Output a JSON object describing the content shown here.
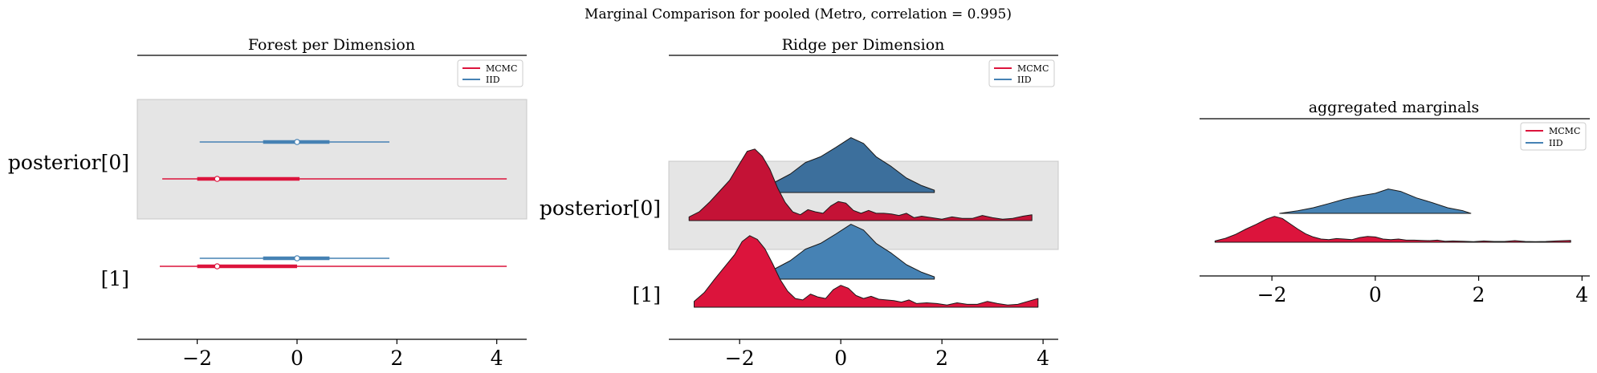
{
  "figure": {
    "suptitle": "Marginal Comparison for pooled (Metro, correlation = 0.995)"
  },
  "colors": {
    "mcmc": "#dc143c",
    "mcmc_dark": "#c41236",
    "iid": "#4682b4",
    "iid_dark": "#3c6f9c",
    "shade": "#e5e5e5",
    "shade_border": "#c8c8c8"
  },
  "legend": {
    "mcmc": "MCMC",
    "iid": "IID"
  },
  "chart_data": [
    {
      "type": "forest",
      "title": "Forest per Dimension",
      "xlim": [
        -3.2,
        4.6
      ],
      "xticks": [
        -2,
        0,
        2,
        4
      ],
      "xtick_labels": [
        "−2",
        "0",
        "2",
        "4"
      ],
      "rows": [
        {
          "label": "posterior[0]",
          "shaded": true,
          "series": [
            {
              "name": "IID",
              "min": -1.95,
              "q25": -0.68,
              "median": 0.0,
              "q75": 0.65,
              "max": 1.85
            },
            {
              "name": "MCMC",
              "min": -2.7,
              "q25": -2.0,
              "median": -1.6,
              "q75": 0.05,
              "max": 4.2
            }
          ]
        },
        {
          "label": "[1]",
          "shaded": false,
          "series": [
            {
              "name": "IID",
              "min": -1.95,
              "q25": -0.68,
              "median": 0.0,
              "q75": 0.65,
              "max": 1.85
            },
            {
              "name": "MCMC",
              "min": -2.75,
              "q25": -2.0,
              "median": -1.6,
              "q75": 0.0,
              "max": 4.2
            }
          ]
        }
      ]
    },
    {
      "type": "ridge",
      "title": "Ridge per Dimension",
      "xlim": [
        -3.4,
        4.3
      ],
      "xticks": [
        -2,
        0,
        2,
        4
      ],
      "xtick_labels": [
        "−2",
        "0",
        "2",
        "4"
      ],
      "rows": [
        {
          "label": "posterior[0]",
          "shaded": true,
          "iid": {
            "x": [
              -1.95,
              -1.6,
              -1.3,
              -1.0,
              -0.7,
              -0.4,
              -0.1,
              0.2,
              0.45,
              0.7,
              1.0,
              1.3,
              1.6,
              1.85
            ],
            "y": [
              0.0,
              0.05,
              0.18,
              0.32,
              0.52,
              0.62,
              0.78,
              0.95,
              0.85,
              0.62,
              0.45,
              0.25,
              0.12,
              0.04
            ]
          },
          "mcmc": {
            "x": [
              -3.0,
              -2.8,
              -2.6,
              -2.4,
              -2.2,
              -2.0,
              -1.85,
              -1.7,
              -1.55,
              -1.4,
              -1.25,
              -1.1,
              -0.95,
              -0.8,
              -0.65,
              -0.5,
              -0.35,
              -0.2,
              -0.05,
              0.1,
              0.25,
              0.4,
              0.55,
              0.7,
              0.85,
              1.0,
              1.15,
              1.3,
              1.45,
              1.6,
              1.8,
              2.0,
              2.2,
              2.4,
              2.6,
              2.8,
              3.0,
              3.2,
              3.4,
              3.6,
              3.78
            ],
            "y": [
              0.05,
              0.12,
              0.25,
              0.4,
              0.55,
              0.78,
              0.95,
              0.98,
              0.88,
              0.7,
              0.45,
              0.25,
              0.12,
              0.08,
              0.15,
              0.12,
              0.1,
              0.2,
              0.26,
              0.24,
              0.14,
              0.1,
              0.14,
              0.1,
              0.1,
              0.09,
              0.07,
              0.1,
              0.04,
              0.06,
              0.04,
              0.02,
              0.05,
              0.03,
              0.03,
              0.07,
              0.04,
              0.02,
              0.03,
              0.06,
              0.08
            ]
          }
        },
        {
          "label": "[1]",
          "shaded": false,
          "iid": {
            "x": [
              -1.95,
              -1.6,
              -1.3,
              -1.0,
              -0.7,
              -0.4,
              -0.1,
              0.2,
              0.45,
              0.7,
              1.0,
              1.3,
              1.6,
              1.85
            ],
            "y": [
              0.0,
              0.05,
              0.18,
              0.32,
              0.52,
              0.62,
              0.78,
              0.95,
              0.85,
              0.62,
              0.45,
              0.25,
              0.12,
              0.04
            ]
          },
          "mcmc": {
            "x": [
              -2.9,
              -2.7,
              -2.5,
              -2.3,
              -2.1,
              -1.95,
              -1.8,
              -1.65,
              -1.5,
              -1.35,
              -1.2,
              -1.05,
              -0.9,
              -0.75,
              -0.6,
              -0.45,
              -0.3,
              -0.15,
              0.0,
              0.15,
              0.3,
              0.45,
              0.6,
              0.75,
              0.9,
              1.05,
              1.2,
              1.35,
              1.5,
              1.7,
              1.9,
              2.1,
              2.3,
              2.5,
              2.7,
              2.9,
              3.1,
              3.3,
              3.5,
              3.7,
              3.9
            ],
            "y": [
              0.08,
              0.2,
              0.38,
              0.55,
              0.72,
              0.9,
              0.98,
              0.93,
              0.8,
              0.6,
              0.38,
              0.22,
              0.12,
              0.1,
              0.18,
              0.14,
              0.12,
              0.24,
              0.3,
              0.26,
              0.16,
              0.12,
              0.15,
              0.11,
              0.1,
              0.09,
              0.07,
              0.1,
              0.05,
              0.06,
              0.05,
              0.03,
              0.06,
              0.04,
              0.04,
              0.08,
              0.05,
              0.03,
              0.04,
              0.08,
              0.12
            ]
          }
        }
      ]
    },
    {
      "type": "ridge",
      "title": "aggregated marginals",
      "xlim": [
        -3.4,
        4.15
      ],
      "xticks": [
        -2,
        0,
        2,
        4
      ],
      "xtick_labels": [
        "−2",
        "0",
        "2",
        "4"
      ],
      "rows": [
        {
          "label": "",
          "shaded": false,
          "iid": {
            "x": [
              -1.85,
              -1.5,
              -1.2,
              -0.9,
              -0.6,
              -0.3,
              0.0,
              0.25,
              0.5,
              0.8,
              1.1,
              1.4,
              1.7,
              1.85
            ],
            "y": [
              0.0,
              0.1,
              0.22,
              0.38,
              0.55,
              0.68,
              0.78,
              0.95,
              0.85,
              0.6,
              0.42,
              0.22,
              0.1,
              0.0
            ]
          },
          "mcmc": {
            "x": [
              -3.1,
              -2.9,
              -2.7,
              -2.5,
              -2.3,
              -2.1,
              -1.95,
              -1.8,
              -1.65,
              -1.5,
              -1.35,
              -1.2,
              -1.05,
              -0.9,
              -0.75,
              -0.6,
              -0.45,
              -0.3,
              -0.15,
              0.0,
              0.15,
              0.3,
              0.45,
              0.6,
              0.75,
              0.9,
              1.05,
              1.2,
              1.35,
              1.5,
              1.7,
              1.9,
              2.1,
              2.3,
              2.5,
              2.7,
              2.9,
              3.1,
              3.3,
              3.5,
              3.78
            ],
            "y": [
              0.05,
              0.15,
              0.3,
              0.5,
              0.68,
              0.88,
              0.98,
              0.9,
              0.7,
              0.5,
              0.32,
              0.2,
              0.12,
              0.1,
              0.14,
              0.12,
              0.1,
              0.18,
              0.22,
              0.2,
              0.12,
              0.1,
              0.12,
              0.08,
              0.08,
              0.07,
              0.06,
              0.08,
              0.04,
              0.05,
              0.04,
              0.02,
              0.05,
              0.03,
              0.03,
              0.06,
              0.03,
              0.02,
              0.03,
              0.05,
              0.07
            ]
          }
        }
      ]
    }
  ]
}
